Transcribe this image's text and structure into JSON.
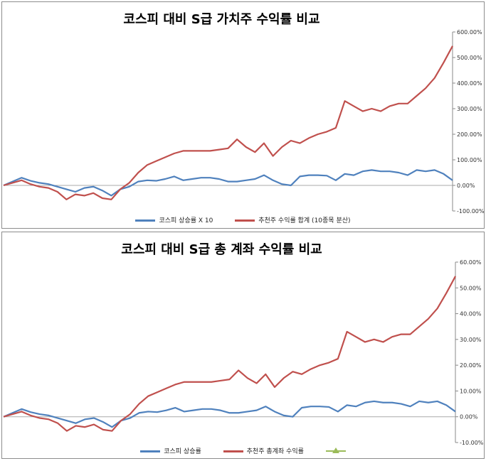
{
  "chart_data": [
    {
      "type": "line",
      "title": "코스피 대비 S급 가치주 수익률 비교",
      "y_ticks": [
        "600.00%",
        "500.00%",
        "400.00%",
        "300.00%",
        "200.00%",
        "100.00%",
        "0.00%",
        "-100.00%"
      ],
      "ylim": [
        -100,
        600
      ],
      "grid": false,
      "legend_position": "bottom",
      "series": [
        {
          "name": "코스피 상승률 X 10",
          "color": "#4f81bd",
          "x": [
            0,
            2,
            4,
            6,
            8,
            10,
            12,
            14,
            16,
            18,
            20,
            22,
            24,
            26,
            28,
            30,
            32,
            34,
            36,
            38,
            40,
            42,
            44,
            46,
            48,
            50,
            52,
            54,
            56,
            58,
            60,
            62,
            64,
            66,
            68,
            70,
            72,
            74,
            76,
            78,
            80,
            82,
            84,
            86,
            88,
            90,
            92,
            94,
            96,
            98,
            100
          ],
          "values": [
            0,
            15,
            30,
            18,
            10,
            5,
            -5,
            -15,
            -25,
            -10,
            -5,
            -20,
            -40,
            -15,
            -5,
            15,
            20,
            18,
            25,
            35,
            20,
            25,
            30,
            30,
            25,
            15,
            15,
            20,
            25,
            40,
            20,
            5,
            0,
            35,
            40,
            40,
            38,
            20,
            45,
            40,
            55,
            60,
            55,
            55,
            50,
            40,
            60,
            55,
            60,
            45,
            20
          ]
        },
        {
          "name": "추천주 수익률 합계 (10종목 분산)",
          "color": "#c0504d",
          "x": [
            0,
            2,
            4,
            6,
            8,
            10,
            12,
            14,
            16,
            18,
            20,
            22,
            24,
            26,
            28,
            30,
            32,
            34,
            36,
            38,
            40,
            42,
            44,
            46,
            48,
            50,
            52,
            54,
            56,
            58,
            60,
            62,
            64,
            66,
            68,
            70,
            72,
            74,
            76,
            78,
            80,
            82,
            84,
            86,
            88,
            90,
            92,
            94,
            96,
            98,
            100
          ],
          "values": [
            0,
            10,
            20,
            5,
            -5,
            -10,
            -25,
            -55,
            -35,
            -40,
            -30,
            -50,
            -55,
            -15,
            10,
            50,
            80,
            95,
            110,
            125,
            135,
            135,
            135,
            135,
            140,
            145,
            180,
            150,
            130,
            165,
            115,
            150,
            175,
            165,
            185,
            200,
            210,
            225,
            330,
            310,
            290,
            300,
            290,
            310,
            320,
            320,
            350,
            380,
            420,
            480,
            545
          ]
        }
      ]
    },
    {
      "type": "line",
      "title": "코스피 대비 S급 총 계좌 수익률 비교",
      "y_ticks": [
        "60.00%",
        "50.00%",
        "40.00%",
        "30.00%",
        "20.00%",
        "10.00%",
        "0.00%",
        "-10.00%"
      ],
      "ylim": [
        -10,
        60
      ],
      "grid": false,
      "legend_position": "bottom",
      "series": [
        {
          "name": "코스피 상승률",
          "color": "#4f81bd",
          "x": [
            0,
            2,
            4,
            6,
            8,
            10,
            12,
            14,
            16,
            18,
            20,
            22,
            24,
            26,
            28,
            30,
            32,
            34,
            36,
            38,
            40,
            42,
            44,
            46,
            48,
            50,
            52,
            54,
            56,
            58,
            60,
            62,
            64,
            66,
            68,
            70,
            72,
            74,
            76,
            78,
            80,
            82,
            84,
            86,
            88,
            90,
            92,
            94,
            96,
            98,
            100
          ],
          "values": [
            0,
            1.5,
            3,
            1.8,
            1,
            0.5,
            -0.5,
            -1.5,
            -2.5,
            -1,
            -0.5,
            -2,
            -4,
            -1.5,
            -0.5,
            1.5,
            2,
            1.8,
            2.5,
            3.5,
            2,
            2.5,
            3,
            3,
            2.5,
            1.5,
            1.5,
            2,
            2.5,
            4,
            2,
            0.5,
            0,
            3.5,
            4,
            4,
            3.8,
            2,
            4.5,
            4,
            5.5,
            6,
            5.5,
            5.5,
            5,
            4,
            6,
            5.5,
            6,
            4.5,
            2
          ]
        },
        {
          "name": "추천주 총계좌 수익률",
          "color": "#c0504d",
          "x": [
            0,
            2,
            4,
            6,
            8,
            10,
            12,
            14,
            16,
            18,
            20,
            22,
            24,
            26,
            28,
            30,
            32,
            34,
            36,
            38,
            40,
            42,
            44,
            46,
            48,
            50,
            52,
            54,
            56,
            58,
            60,
            62,
            64,
            66,
            68,
            70,
            72,
            74,
            76,
            78,
            80,
            82,
            84,
            86,
            88,
            90,
            92,
            94,
            96,
            98,
            100
          ],
          "values": [
            0,
            1,
            2,
            0.5,
            -0.5,
            -1,
            -2.5,
            -5.5,
            -3.5,
            -4,
            -3,
            -5,
            -5.5,
            -1.5,
            1,
            5,
            8,
            9.5,
            11,
            12.5,
            13.5,
            13.5,
            13.5,
            13.5,
            14,
            14.5,
            18,
            15,
            13,
            16.5,
            11.5,
            15,
            17.5,
            16.5,
            18.5,
            20,
            21,
            22.5,
            33,
            31,
            29,
            30,
            29,
            31,
            32,
            32,
            35,
            38,
            42,
            48,
            54.5
          ]
        },
        {
          "name": "",
          "color": "#9bbb59",
          "x": [],
          "values": []
        }
      ]
    }
  ]
}
